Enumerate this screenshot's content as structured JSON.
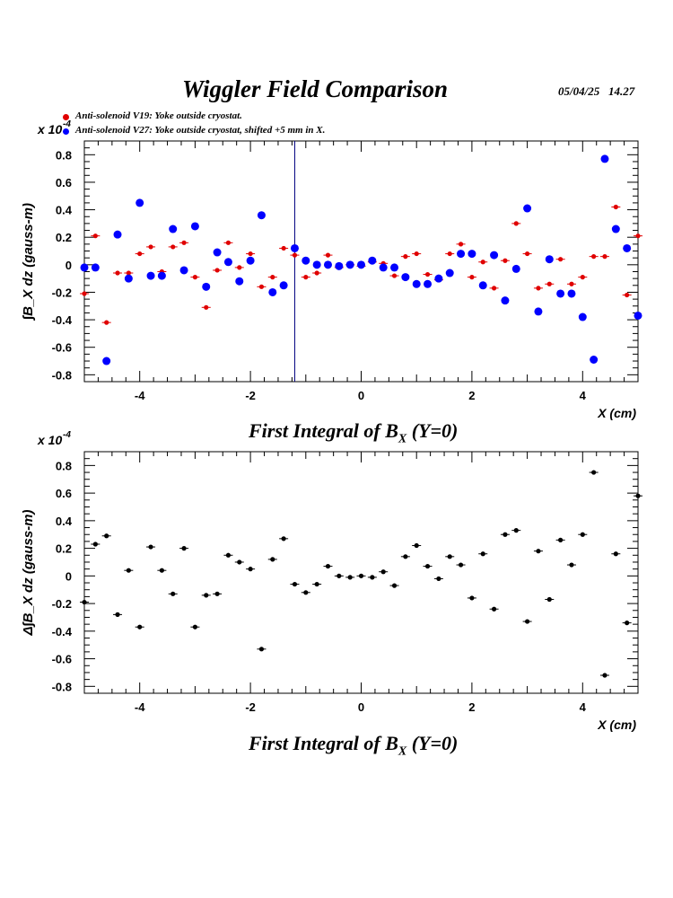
{
  "header": {
    "title": "Wiggler Field Comparison",
    "datetime": "05/04/25   14.27"
  },
  "legend": [
    {
      "label": "Anti-solenoid V19: Yoke outside cryostat.",
      "color": "#e00000"
    },
    {
      "label": "Anti-solenoid V27: Yoke outside cryostat, shifted +5 mm in X.",
      "color": "#0000ff"
    }
  ],
  "chart_data": [
    {
      "type": "scatter",
      "ylabel": "∫B_X dz  (gauss-m)",
      "exponent_label": "x 10",
      "exponent": "-4",
      "xlabel": "X (cm)",
      "subtitle": "First Integral of B_X (Y=0)",
      "xlim": [
        -5,
        5
      ],
      "ylim": [
        -0.85,
        0.9
      ],
      "xticks": [
        -4,
        -2,
        0,
        2,
        4
      ],
      "yticks": [
        -0.8,
        -0.6,
        -0.4,
        -0.2,
        0,
        0.2,
        0.4,
        0.6,
        0.8
      ],
      "ytick_labels": [
        "-0.8",
        "-0.6",
        "-0.4",
        "-0.2",
        "0",
        "0.2",
        "0.4",
        "0.6",
        "0.8"
      ],
      "xtick_labels": [
        "-4",
        "-2",
        "0",
        "2",
        "4"
      ],
      "annotation_vline_x": -1.2,
      "series": [
        {
          "name": "Anti-solenoid V19: Yoke outside cryostat.",
          "color": "#e00000",
          "marker": "small",
          "x": [
            -5.0,
            -4.8,
            -4.6,
            -4.4,
            -4.2,
            -4.0,
            -3.8,
            -3.6,
            -3.4,
            -3.2,
            -3.0,
            -2.8,
            -2.6,
            -2.4,
            -2.2,
            -2.0,
            -1.8,
            -1.6,
            -1.4,
            -1.2,
            -1.0,
            -0.8,
            -0.6,
            -0.4,
            -0.2,
            0.0,
            0.2,
            0.4,
            0.6,
            0.8,
            1.0,
            1.2,
            1.4,
            1.6,
            1.8,
            2.0,
            2.2,
            2.4,
            2.6,
            2.8,
            3.0,
            3.2,
            3.4,
            3.6,
            3.8,
            4.0,
            4.2,
            4.4,
            4.6,
            4.8,
            5.0
          ],
          "y": [
            -0.21,
            0.21,
            -0.42,
            -0.06,
            -0.06,
            0.08,
            0.13,
            -0.05,
            0.13,
            0.16,
            -0.09,
            -0.31,
            -0.04,
            0.16,
            -0.02,
            0.08,
            -0.16,
            -0.09,
            0.12,
            0.07,
            -0.09,
            -0.06,
            0.07,
            -0.02,
            0.0,
            -0.01,
            0.02,
            0.01,
            -0.08,
            0.06,
            0.08,
            -0.07,
            -0.11,
            0.08,
            0.15,
            -0.09,
            0.02,
            -0.17,
            0.03,
            0.3,
            0.08,
            -0.17,
            -0.14,
            0.04,
            -0.14,
            -0.09,
            0.06,
            0.06,
            0.42,
            -0.22,
            0.21
          ]
        },
        {
          "name": "Anti-solenoid V27: Yoke outside cryostat, shifted +5 mm in X.",
          "color": "#0000ff",
          "marker": "large",
          "x": [
            -5.0,
            -4.8,
            -4.6,
            -4.4,
            -4.2,
            -4.0,
            -3.8,
            -3.6,
            -3.4,
            -3.2,
            -3.0,
            -2.8,
            -2.6,
            -2.4,
            -2.2,
            -2.0,
            -1.8,
            -1.6,
            -1.4,
            -1.2,
            -1.0,
            -0.8,
            -0.6,
            -0.4,
            -0.2,
            0.0,
            0.2,
            0.4,
            0.6,
            0.8,
            1.0,
            1.2,
            1.4,
            1.6,
            1.8,
            2.0,
            2.2,
            2.4,
            2.6,
            2.8,
            3.0,
            3.2,
            3.4,
            3.6,
            3.8,
            4.0,
            4.2,
            4.4,
            4.6,
            4.8,
            5.0
          ],
          "y": [
            -0.02,
            -0.02,
            -0.7,
            0.22,
            -0.1,
            0.45,
            -0.08,
            -0.08,
            0.26,
            -0.04,
            0.28,
            -0.16,
            0.09,
            0.02,
            -0.12,
            0.03,
            0.36,
            -0.2,
            -0.15,
            0.12,
            0.03,
            0.0,
            0.0,
            -0.01,
            0.0,
            0.0,
            0.03,
            -0.02,
            -0.02,
            -0.09,
            -0.14,
            -0.14,
            -0.1,
            -0.06,
            0.08,
            0.08,
            -0.15,
            0.07,
            -0.26,
            -0.03,
            0.41,
            -0.34,
            0.04,
            -0.21,
            -0.21,
            -0.38,
            -0.69,
            0.77,
            0.26,
            0.12,
            -0.37
          ]
        }
      ]
    },
    {
      "type": "scatter",
      "ylabel": "Δ∫B_X dz  (gauss-m)",
      "exponent_label": "x 10",
      "exponent": "-4",
      "xlabel": "X (cm)",
      "subtitle": "First Integral of B_X (Y=0)",
      "xlim": [
        -5,
        5
      ],
      "ylim": [
        -0.85,
        0.9
      ],
      "xticks": [
        -4,
        -2,
        0,
        2,
        4
      ],
      "yticks": [
        -0.8,
        -0.6,
        -0.4,
        -0.2,
        0,
        0.2,
        0.4,
        0.6,
        0.8
      ],
      "ytick_labels": [
        "-0.8",
        "-0.6",
        "-0.4",
        "-0.2",
        "0",
        "0.2",
        "0.4",
        "0.6",
        "0.8"
      ],
      "xtick_labels": [
        "-4",
        "-2",
        "0",
        "2",
        "4"
      ],
      "series": [
        {
          "color": "#000000",
          "marker": "small",
          "x": [
            -5.0,
            -4.8,
            -4.6,
            -4.4,
            -4.2,
            -4.0,
            -3.8,
            -3.6,
            -3.4,
            -3.2,
            -3.0,
            -2.8,
            -2.6,
            -2.4,
            -2.2,
            -2.0,
            -1.8,
            -1.6,
            -1.4,
            -1.2,
            -1.0,
            -0.8,
            -0.6,
            -0.4,
            -0.2,
            0.0,
            0.2,
            0.4,
            0.6,
            0.8,
            1.0,
            1.2,
            1.4,
            1.6,
            1.8,
            2.0,
            2.2,
            2.4,
            2.6,
            2.8,
            3.0,
            3.2,
            3.4,
            3.6,
            3.8,
            4.0,
            4.2,
            4.4,
            4.6,
            4.8,
            5.0
          ],
          "y": [
            -0.19,
            0.23,
            0.29,
            -0.28,
            0.04,
            -0.37,
            0.21,
            0.04,
            -0.13,
            0.2,
            -0.37,
            -0.14,
            -0.13,
            0.15,
            0.1,
            0.05,
            -0.53,
            0.12,
            0.27,
            -0.06,
            -0.12,
            -0.06,
            0.07,
            0.0,
            -0.01,
            0.0,
            -0.01,
            0.03,
            -0.07,
            0.14,
            0.22,
            0.07,
            -0.02,
            0.14,
            0.08,
            -0.16,
            0.16,
            -0.24,
            0.3,
            0.33,
            -0.33,
            0.18,
            -0.17,
            0.26,
            0.08,
            0.3,
            0.75,
            -0.72,
            0.16,
            -0.34,
            0.58
          ]
        }
      ]
    }
  ]
}
